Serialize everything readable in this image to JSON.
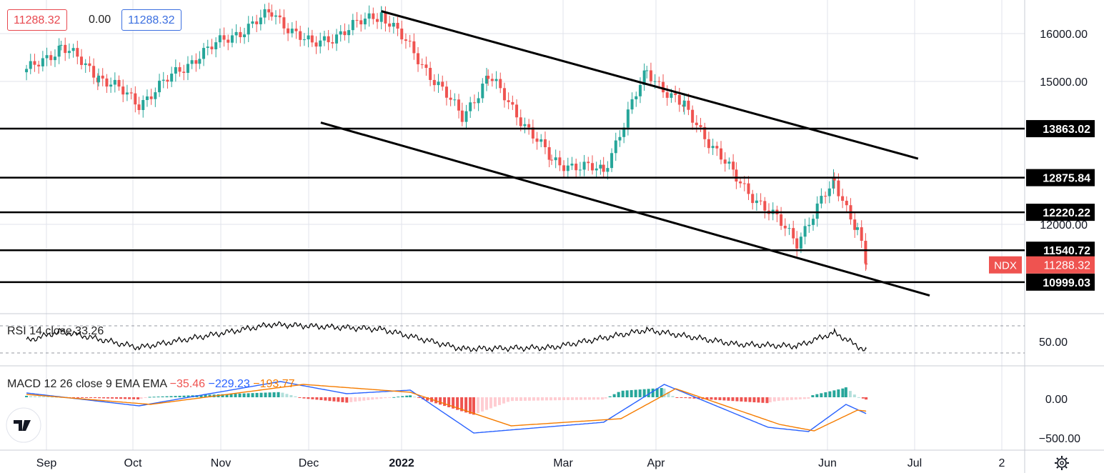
{
  "symbol": "NDX",
  "header": {
    "price_red": "11288.32",
    "change": "0.00",
    "price_blue": "11288.32"
  },
  "colors": {
    "up": "#26a69a",
    "down": "#ef5350",
    "line": "#000000",
    "macd": "#2962ff",
    "signal": "#f57c00",
    "grid": "#e0e3eb"
  },
  "rsi": {
    "label": "RSI 14 close",
    "value": "33.26",
    "axis_label": "50.00"
  },
  "macd": {
    "label": "MACD 12 26 close 9 EMA EMA",
    "hist": "−35.46",
    "macd": "−229.23",
    "signal": "−193.77",
    "axis_labels": [
      "0.00",
      "−500.00"
    ]
  },
  "chart_data": {
    "type": "candlestick",
    "y_axis_ticks": [
      "16000.00",
      "15000.00",
      "12000.00"
    ],
    "x_ticks": [
      "Sep",
      "Oct",
      "Nov",
      "Dec",
      "2022",
      "Mar",
      "Apr",
      "Jun",
      "Jul",
      "2"
    ],
    "last_price": "11288.32",
    "horizontal_levels": [
      "13863.02",
      "12875.84",
      "12220.22",
      "11540.72",
      "10999.03"
    ],
    "level_values": [
      13863.02,
      12875.84,
      12220.22,
      11540.72,
      10999.03
    ],
    "channel_upper": [
      {
        "x": "2021-12-27",
        "y": 16550
      },
      {
        "x": "2022-07-01",
        "y": 13250
      }
    ],
    "channel_lower": [
      {
        "x": "2021-12-06",
        "y": 13990
      },
      {
        "x": "2022-07-05",
        "y": 10780
      }
    ],
    "close_path": [
      {
        "x": "2021-08-26",
        "y": 15100
      },
      {
        "x": "2021-09-07",
        "y": 15700
      },
      {
        "x": "2021-09-20",
        "y": 15000
      },
      {
        "x": "2021-10-04",
        "y": 14400
      },
      {
        "x": "2021-10-25",
        "y": 15500
      },
      {
        "x": "2021-11-19",
        "y": 16500
      },
      {
        "x": "2021-12-03",
        "y": 15700
      },
      {
        "x": "2021-12-27",
        "y": 16500
      },
      {
        "x": "2022-01-24",
        "y": 14100
      },
      {
        "x": "2022-02-02",
        "y": 15000
      },
      {
        "x": "2022-02-24",
        "y": 13200
      },
      {
        "x": "2022-03-14",
        "y": 13000
      },
      {
        "x": "2022-03-29",
        "y": 15100
      },
      {
        "x": "2022-04-11",
        "y": 14300
      },
      {
        "x": "2022-04-29",
        "y": 12850
      },
      {
        "x": "2022-05-20",
        "y": 11700
      },
      {
        "x": "2022-06-02",
        "y": 12800
      },
      {
        "x": "2022-06-10",
        "y": 11900
      },
      {
        "x": "2022-06-13",
        "y": 11288
      }
    ],
    "rsi_path": [
      {
        "x": "2021-08-26",
        "y": 48
      },
      {
        "x": "2021-09-07",
        "y": 62
      },
      {
        "x": "2021-10-04",
        "y": 38
      },
      {
        "x": "2021-11-19",
        "y": 72
      },
      {
        "x": "2021-12-27",
        "y": 65
      },
      {
        "x": "2022-01-24",
        "y": 36
      },
      {
        "x": "2022-02-24",
        "y": 38
      },
      {
        "x": "2022-03-29",
        "y": 64
      },
      {
        "x": "2022-04-29",
        "y": 43
      },
      {
        "x": "2022-05-20",
        "y": 40
      },
      {
        "x": "2022-06-02",
        "y": 60
      },
      {
        "x": "2022-06-13",
        "y": 33
      }
    ],
    "macd_path": [
      {
        "x": "2021-08-26",
        "y": 60
      },
      {
        "x": "2021-10-04",
        "y": -120
      },
      {
        "x": "2021-11-22",
        "y": 220
      },
      {
        "x": "2021-12-15",
        "y": 50
      },
      {
        "x": "2022-01-06",
        "y": 100
      },
      {
        "x": "2022-01-28",
        "y": -500
      },
      {
        "x": "2022-03-14",
        "y": -350
      },
      {
        "x": "2022-04-04",
        "y": 180
      },
      {
        "x": "2022-05-10",
        "y": -420
      },
      {
        "x": "2022-05-24",
        "y": -480
      },
      {
        "x": "2022-06-06",
        "y": -100
      },
      {
        "x": "2022-06-13",
        "y": -229
      }
    ],
    "signal_path": [
      {
        "x": "2021-08-26",
        "y": 40
      },
      {
        "x": "2021-10-08",
        "y": -100
      },
      {
        "x": "2021-11-30",
        "y": 180
      },
      {
        "x": "2022-01-06",
        "y": 70
      },
      {
        "x": "2022-02-10",
        "y": -400
      },
      {
        "x": "2022-03-20",
        "y": -300
      },
      {
        "x": "2022-04-08",
        "y": 120
      },
      {
        "x": "2022-05-14",
        "y": -380
      },
      {
        "x": "2022-05-26",
        "y": -470
      },
      {
        "x": "2022-06-10",
        "y": -180
      },
      {
        "x": "2022-06-13",
        "y": -194
      }
    ]
  }
}
